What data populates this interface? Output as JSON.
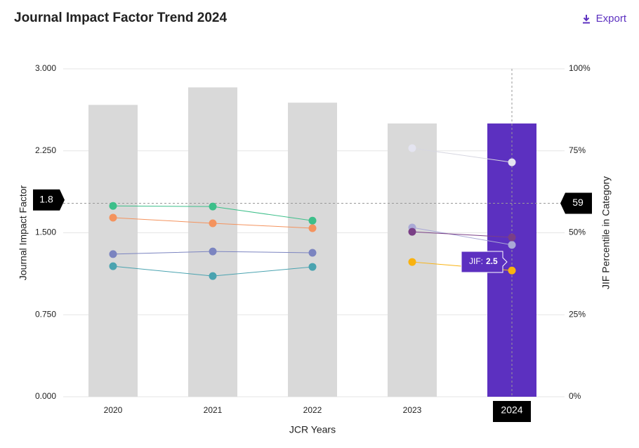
{
  "chart_data": {
    "type": "bar_line",
    "title": "Journal Impact Factor Trend 2024",
    "export": "Export",
    "ylabel": "Journal Impact Factor",
    "y2label": "JIF Percentile in Category",
    "xlabel": "JCR Years",
    "categories": [
      "2020",
      "2021",
      "2022",
      "2023",
      "2024"
    ],
    "values": [
      2.67,
      2.83,
      2.69,
      2.5,
      2.5
    ],
    "color": "#d9d9d9",
    "highlight": "2024",
    "highlight_color": "#5c30c0",
    "ylim": [
      0,
      3
    ],
    "yticks": [
      {
        "value": 0,
        "label": "0.000"
      },
      {
        "value": 0.75,
        "label": "0.750"
      },
      {
        "value": 1.5,
        "label": "1.500"
      },
      {
        "value": 2.25,
        "label": "2.250"
      },
      {
        "value": 3,
        "label": "3.000"
      }
    ],
    "y2lim": [
      0,
      100
    ],
    "y2ticks": [
      {
        "value": 0,
        "label": "0%"
      },
      {
        "value": 25,
        "label": "25%"
      },
      {
        "value": 50,
        "label": "50%"
      },
      {
        "value": 75,
        "label": "75%"
      },
      {
        "value": 100,
        "label": "100%"
      }
    ],
    "grid": true,
    "series": [
      {
        "color": "#3dbf8a",
        "axis": "y2",
        "values": [
          58.2,
          58.0,
          53.7,
          null,
          null
        ]
      },
      {
        "color": "#f4935e",
        "axis": "y2",
        "values": [
          54.6,
          52.9,
          51.4,
          null,
          null
        ]
      },
      {
        "color": "#7b84c0",
        "axis": "y2",
        "values": [
          43.5,
          44.3,
          43.9,
          null,
          null
        ]
      },
      {
        "color": "#4aa3b0",
        "axis": "y2",
        "values": [
          39.8,
          36.8,
          39.6,
          null,
          null
        ]
      },
      {
        "color": "#e4e4f0",
        "axis": "y2",
        "values": [
          null,
          null,
          null,
          75.8,
          71.5
        ]
      },
      {
        "color": "#aaa9d6",
        "axis": "y2",
        "values": [
          null,
          null,
          null,
          51.6,
          46.3
        ]
      },
      {
        "color": "#7a3f86",
        "axis": "y2",
        "values": [
          null,
          null,
          null,
          50.3,
          48.6
        ]
      },
      {
        "color": "#f9b20f",
        "axis": "y2",
        "values": [
          null,
          null,
          null,
          41.1,
          38.5
        ]
      }
    ],
    "crosshair": {
      "y": 1.8,
      "y2": 59
    },
    "tooltip": {
      "label": "JIF:",
      "value": 2.5
    }
  }
}
